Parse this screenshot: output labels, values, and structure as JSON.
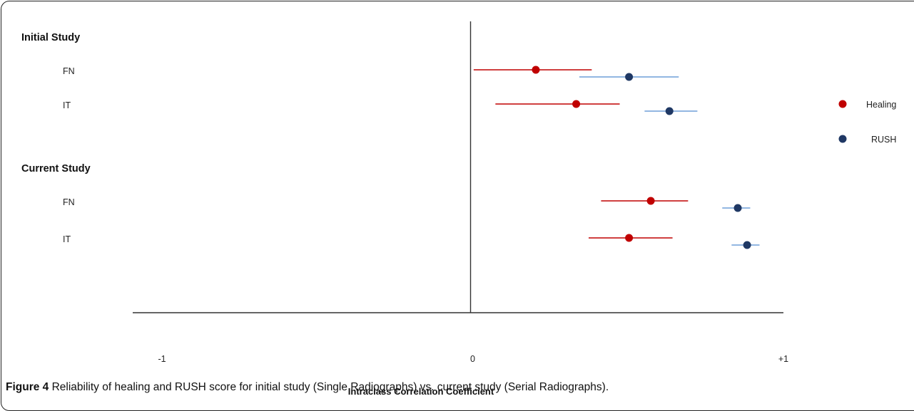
{
  "chart_data": {
    "type": "scatter",
    "xlabel": "Intraclass Correlation Coefficient",
    "xlim": [
      -1,
      1
    ],
    "x_tick_labels": [
      "-1",
      "0",
      "+1"
    ],
    "groups": [
      {
        "label": "Initial Study",
        "rows": [
          "FN",
          "IT"
        ]
      },
      {
        "label": "Current Study",
        "rows": [
          "FN",
          "IT"
        ]
      }
    ],
    "legend": {
      "position": "right",
      "entries": [
        "Healing",
        "RUSH"
      ]
    },
    "series": [
      {
        "name": "Healing",
        "color": "#c00000",
        "points": [
          {
            "group": "Initial Study",
            "row": "FN",
            "value": 0.21,
            "ci": [
              0.01,
              0.39
            ]
          },
          {
            "group": "Initial Study",
            "row": "IT",
            "value": 0.34,
            "ci": [
              0.08,
              0.48
            ]
          },
          {
            "group": "Current Study",
            "row": "FN",
            "value": 0.58,
            "ci": [
              0.42,
              0.7
            ]
          },
          {
            "group": "Current Study",
            "row": "IT",
            "value": 0.51,
            "ci": [
              0.38,
              0.65
            ]
          }
        ]
      },
      {
        "name": "RUSH",
        "color": "#1f3864",
        "ci_color": "#6f9fd8",
        "points": [
          {
            "group": "Initial Study",
            "row": "FN",
            "value": 0.51,
            "ci": [
              0.35,
              0.67
            ]
          },
          {
            "group": "Initial Study",
            "row": "IT",
            "value": 0.64,
            "ci": [
              0.56,
              0.73
            ]
          },
          {
            "group": "Current Study",
            "row": "FN",
            "value": 0.86,
            "ci": [
              0.81,
              0.9
            ]
          },
          {
            "group": "Current Study",
            "row": "IT",
            "value": 0.89,
            "ci": [
              0.84,
              0.93
            ]
          }
        ]
      }
    ]
  },
  "caption": {
    "prefix": "Figure 4",
    "text": " Reliability of healing and RUSH score for initial study (Single Radiographs) vs. current study (Serial Radiographs)."
  }
}
